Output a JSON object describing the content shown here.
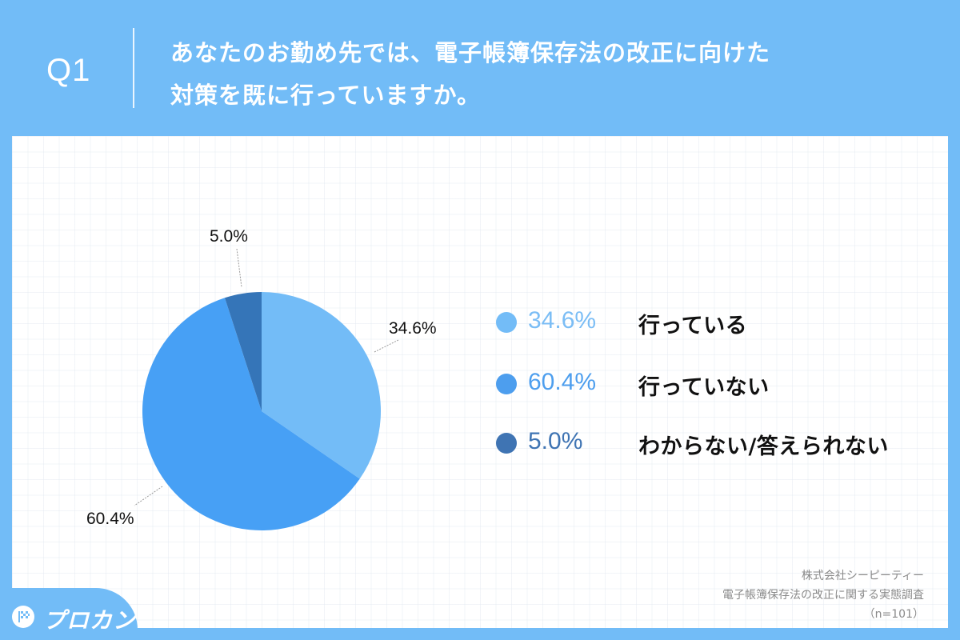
{
  "header": {
    "question_label": "Q1",
    "title_line1": "あなたのお勤め先では、電子帳簿保存法の改正に向けた",
    "title_line2": "対策を既に行っていますか。"
  },
  "colors": {
    "header_bg": "#72BCF7",
    "slice_done": "#73BCF7",
    "slice_not_done": "#47A0F5",
    "slice_unknown": "#3575B8"
  },
  "chart_data": {
    "type": "pie",
    "title": "あなたのお勤め先では、電子帳簿保存法の改正に向けた対策を既に行っていますか。",
    "categories": [
      "行っている",
      "行っていない",
      "わからない/答えられない"
    ],
    "values": [
      34.6,
      60.4,
      5.0
    ],
    "unit": "%",
    "start_angle": "12 o'clock, clockwise",
    "legend_position": "right",
    "sample_size": "n=101"
  },
  "slice_labels": {
    "done": "34.6%",
    "not_done": "60.4%",
    "unknown": "5.0%"
  },
  "legend": {
    "items": [
      {
        "pct": "34.6%",
        "label": "行っている",
        "color": "#73BCF7",
        "pct_color": "#7BBDF5"
      },
      {
        "pct": "60.4%",
        "label": "行っていない",
        "color": "#4D9EEE",
        "pct_color": "#4D9EEE"
      },
      {
        "pct": "5.0%",
        "label": "わからない/答えられない",
        "color": "#3F74B3",
        "pct_color": "#3F74B3"
      }
    ]
  },
  "source": {
    "company": "株式会社シーピーティー",
    "survey": "電子帳簿保存法の改正に関する実態調査",
    "sample": "（n=101）"
  },
  "logo": {
    "text": "プロカン"
  }
}
